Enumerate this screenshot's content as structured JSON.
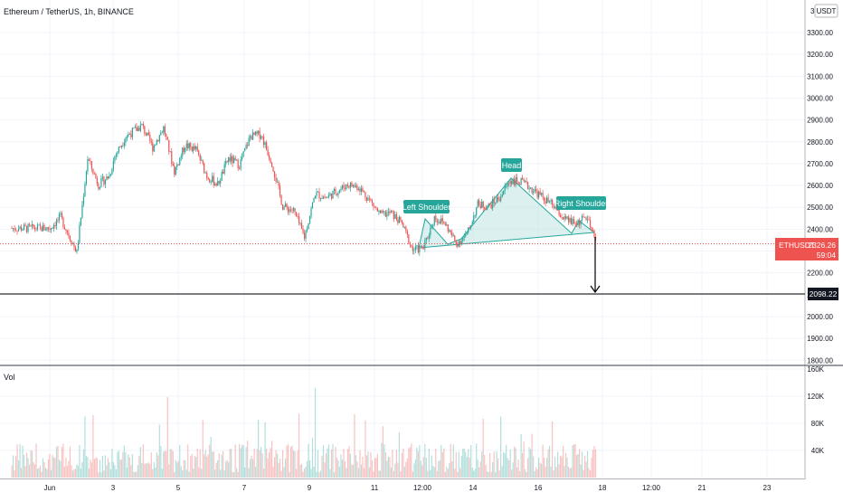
{
  "header": {
    "title": "Ethereum / TetherUS, 1h, BINANCE",
    "currency_button": "USDT",
    "price_axis_top_label": "3"
  },
  "volume": {
    "label": "Vol",
    "axis_labels": [
      "160K",
      "120K",
      "80K",
      "40K"
    ]
  },
  "annotations": {
    "left_shoulder": "Left Shoulder",
    "head": "Head",
    "right_shoulder": "Right Shoulder"
  },
  "price_badge": {
    "symbol": "ETHUSDT",
    "price": "2326.26",
    "countdown": "59:04"
  },
  "target_line": {
    "label": "2098.22",
    "value": 2098.22
  },
  "colors": {
    "up": "#26a69a",
    "down": "#ef5350",
    "pattern_fill": "#b2dfdb",
    "pattern_line": "#26a69a",
    "badge": "#ef5350",
    "target": "#000000"
  },
  "chart_data": {
    "type": "candlestick",
    "title": "Ethereum / TetherUS, 1h, BINANCE",
    "y_ticks": [
      "3300.00",
      "3200.00",
      "3100.00",
      "3000.00",
      "2900.00",
      "2800.00",
      "2700.00",
      "2600.00",
      "2500.00",
      "2400.00",
      "2300.00",
      "2200.00",
      "2100.00",
      "2000.00",
      "1900.00",
      "1800.00"
    ],
    "x_ticks": [
      "Jun",
      "3",
      "5",
      "7",
      "9",
      "11",
      "12:00",
      "14",
      "16",
      "18",
      "12:00",
      "21",
      "23"
    ],
    "ylim": [
      1780,
      3370
    ],
    "price_path": [
      [
        "Jun 1 00:00",
        2400
      ],
      [
        "Jun 1 08:00",
        2450
      ],
      [
        "Jun 1 20:00",
        2290
      ],
      [
        "Jun 2 04:00",
        2720
      ],
      [
        "Jun 2 12:00",
        2600
      ],
      [
        "Jun 2 20:00",
        2640
      ],
      [
        "Jun 3 00:00",
        2730
      ],
      [
        "Jun 3 08:00",
        2820
      ],
      [
        "Jun 3 20:00",
        2870
      ],
      [
        "Jun 4 04:00",
        2770
      ],
      [
        "Jun 4 12:00",
        2860
      ],
      [
        "Jun 4 20:00",
        2660
      ],
      [
        "Jun 5 04:00",
        2780
      ],
      [
        "Jun 5 12:00",
        2760
      ],
      [
        "Jun 5 20:00",
        2640
      ],
      [
        "Jun 6 04:00",
        2600
      ],
      [
        "Jun 6 12:00",
        2720
      ],
      [
        "Jun 6 20:00",
        2690
      ],
      [
        "Jun 7 04:00",
        2820
      ],
      [
        "Jun 7 12:00",
        2830
      ],
      [
        "Jun 7 20:00",
        2700
      ],
      [
        "Jun 8 04:00",
        2500
      ],
      [
        "Jun 8 12:00",
        2480
      ],
      [
        "Jun 8 20:00",
        2360
      ],
      [
        "Jun 9 04:00",
        2560
      ],
      [
        "Jun 9 12:00",
        2540
      ],
      [
        "Jun 9 20:00",
        2570
      ],
      [
        "Jun 10 04:00",
        2600
      ],
      [
        "Jun 10 12:00",
        2590
      ],
      [
        "Jun 10 20:00",
        2530
      ],
      [
        "Jun 11 04:00",
        2460
      ],
      [
        "Jun 11 12:00",
        2470
      ],
      [
        "Jun 11 20:00",
        2420
      ],
      [
        "Jun 12 04:00",
        2300
      ],
      [
        "Jun 12 12:00",
        2310
      ],
      [
        "Jun 12 20:00",
        2450
      ],
      [
        "Jun 13 04:00",
        2420
      ],
      [
        "Jun 13 12:00",
        2330
      ],
      [
        "Jun 13 20:00",
        2370
      ],
      [
        "Jun 14 04:00",
        2510
      ],
      [
        "Jun 14 12:00",
        2500
      ],
      [
        "Jun 14 20:00",
        2540
      ],
      [
        "Jun 15 04:00",
        2620
      ],
      [
        "Jun 15 12:00",
        2610
      ],
      [
        "Jun 15 20:00",
        2580
      ],
      [
        "Jun 16 04:00",
        2540
      ],
      [
        "Jun 16 12:00",
        2500
      ],
      [
        "Jun 16 20:00",
        2440
      ],
      [
        "Jun 17 04:00",
        2420
      ],
      [
        "Jun 17 12:00",
        2450
      ],
      [
        "Jun 17 20:00",
        2326.26
      ]
    ],
    "volume_ylim": [
      0,
      170000
    ]
  }
}
